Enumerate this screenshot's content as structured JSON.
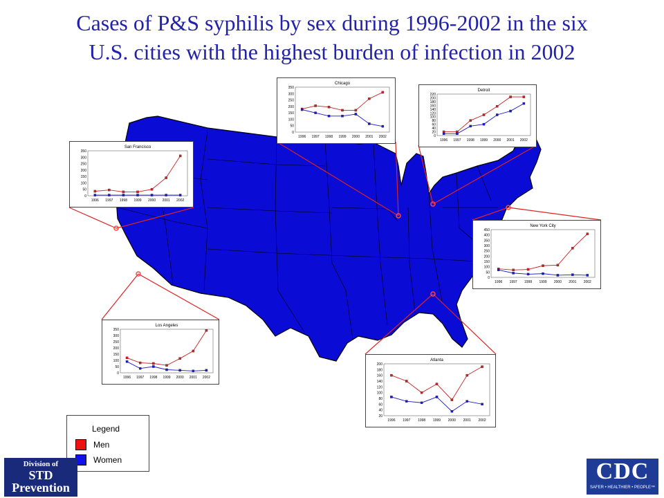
{
  "title": {
    "line1": "Cases of P&S syphilis by sex during 1996-2002 in the six",
    "line2": "U.S. cities with the highest burden of infection in 2002"
  },
  "colors": {
    "men": "#cc2222",
    "women": "#1a1acc",
    "map": "#0b0bd6",
    "title": "#2222aa"
  },
  "legend": {
    "title": "Legend",
    "men": "Men",
    "women": "Women"
  },
  "logos": {
    "std": {
      "line1": "Division of",
      "line2": "STD",
      "line3": "Prevention"
    },
    "cdc": {
      "name": "CDC",
      "tagline": "SAFER • HEALTHIER • PEOPLE™"
    }
  },
  "chart_data": [
    {
      "type": "line",
      "title": "Chicago",
      "categories": [
        "1996",
        "1997",
        "1998",
        "1999",
        "2000",
        "2001",
        "2002"
      ],
      "ylim": [
        0,
        350
      ],
      "yticks": [
        0,
        50,
        100,
        150,
        200,
        250,
        300,
        350
      ],
      "series": [
        {
          "name": "Men",
          "values": [
            180,
            205,
            195,
            170,
            170,
            260,
            310
          ]
        },
        {
          "name": "Women",
          "values": [
            175,
            150,
            125,
            125,
            140,
            65,
            45
          ]
        }
      ]
    },
    {
      "type": "line",
      "title": "Detroit",
      "categories": [
        "1996",
        "1997",
        "1998",
        "1999",
        "2000",
        "2001",
        "2002"
      ],
      "ylim": [
        0,
        220
      ],
      "yticks": [
        0,
        20,
        40,
        60,
        80,
        100,
        120,
        140,
        160,
        180,
        200,
        220
      ],
      "series": [
        {
          "name": "Men",
          "values": [
            20,
            20,
            80,
            110,
            155,
            205,
            205
          ]
        },
        {
          "name": "Women",
          "values": [
            10,
            10,
            50,
            60,
            110,
            130,
            170
          ]
        }
      ]
    },
    {
      "type": "line",
      "title": "San Francisco",
      "categories": [
        "1996",
        "1997",
        "1998",
        "1999",
        "2000",
        "2001",
        "2002"
      ],
      "ylim": [
        0,
        350
      ],
      "yticks": [
        0,
        50,
        100,
        150,
        200,
        250,
        300,
        350
      ],
      "series": [
        {
          "name": "Men",
          "values": [
            35,
            45,
            30,
            30,
            50,
            140,
            310
          ]
        },
        {
          "name": "Women",
          "values": [
            5,
            5,
            5,
            5,
            5,
            5,
            5
          ]
        }
      ]
    },
    {
      "type": "line",
      "title": "New York City",
      "categories": [
        "1996",
        "1997",
        "1998",
        "1999",
        "2000",
        "2001",
        "2002"
      ],
      "ylim": [
        0,
        450
      ],
      "yticks": [
        0,
        50,
        100,
        150,
        200,
        250,
        300,
        350,
        400,
        450
      ],
      "series": [
        {
          "name": "Men",
          "values": [
            80,
            70,
            75,
            110,
            115,
            275,
            410
          ]
        },
        {
          "name": "Women",
          "values": [
            70,
            40,
            30,
            35,
            20,
            25,
            20
          ]
        }
      ]
    },
    {
      "type": "line",
      "title": "Los Angeles",
      "categories": [
        "1996",
        "1997",
        "1998",
        "1999",
        "2000",
        "2001",
        "2002"
      ],
      "ylim": [
        0,
        350
      ],
      "yticks": [
        0,
        50,
        100,
        150,
        200,
        250,
        300,
        350
      ],
      "series": [
        {
          "name": "Men",
          "values": [
            120,
            80,
            75,
            60,
            115,
            175,
            340
          ]
        },
        {
          "name": "Women",
          "values": [
            90,
            35,
            50,
            25,
            20,
            15,
            20
          ]
        }
      ]
    },
    {
      "type": "line",
      "title": "Atlanta",
      "categories": [
        "1996",
        "1997",
        "1998",
        "1999",
        "2000",
        "2001",
        "2002"
      ],
      "ylim": [
        20,
        200
      ],
      "yticks": [
        20,
        40,
        60,
        80,
        100,
        120,
        140,
        160,
        180,
        200
      ],
      "series": [
        {
          "name": "Men",
          "values": [
            160,
            140,
            100,
            130,
            75,
            160,
            190
          ]
        },
        {
          "name": "Women",
          "values": [
            85,
            70,
            65,
            85,
            35,
            70,
            60
          ]
        }
      ]
    }
  ]
}
